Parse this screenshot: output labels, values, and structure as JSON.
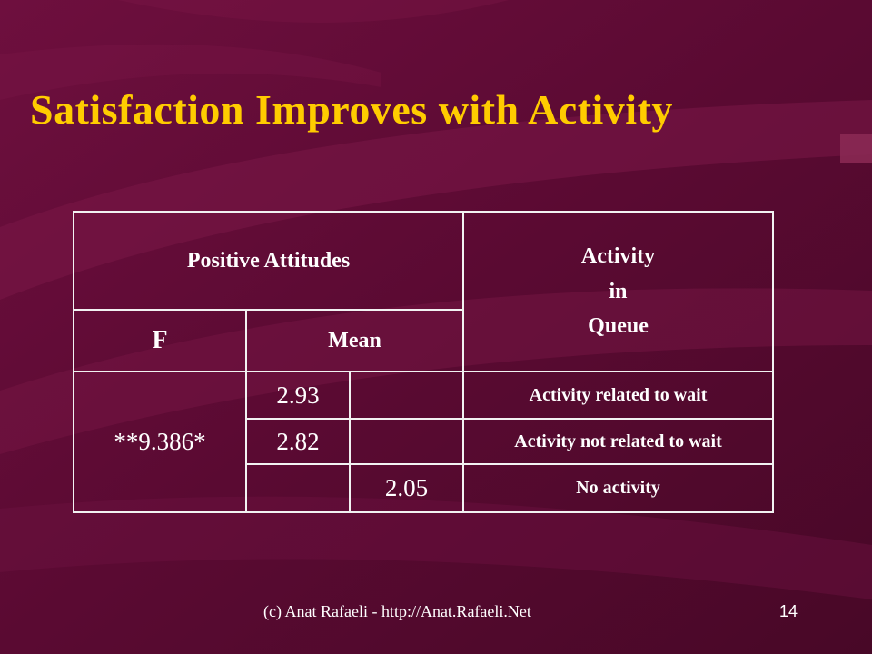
{
  "slide": {
    "title": "Satisfaction Improves with Activity",
    "footer": "(c) Anat Rafaeli - http://Anat.Rafaeli.Net",
    "page_number": "14"
  },
  "table": {
    "header_positive": "Positive Attitudes",
    "header_activity": [
      "Activity",
      "in",
      "Queue"
    ],
    "col_f": "F",
    "col_mean": "Mean",
    "f_value": "**9.386*",
    "rows": [
      {
        "mean": "2.93",
        "label": "Activity related to wait"
      },
      {
        "mean": "2.82",
        "label": "Activity not related to wait"
      },
      {
        "mean": "2.05",
        "label": "No activity"
      }
    ]
  }
}
